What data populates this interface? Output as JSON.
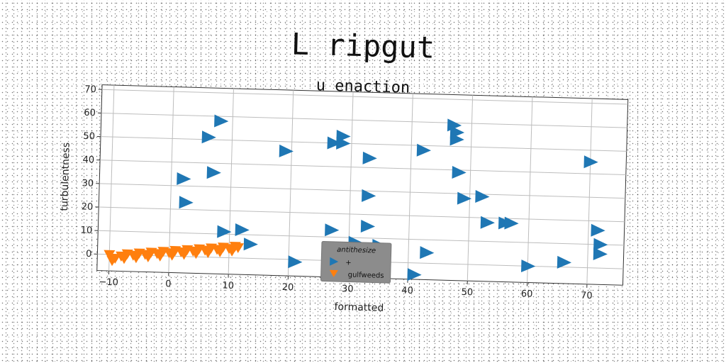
{
  "chart_data": {
    "type": "scatter",
    "title": "L ripgut",
    "subtitle": "u enaction",
    "xlabel": "formatted",
    "ylabel": "turbulentness",
    "xlim": [
      -12,
      76
    ],
    "ylim": [
      -7,
      72
    ],
    "xticks": [
      -10,
      0,
      10,
      20,
      30,
      40,
      50,
      60,
      70
    ],
    "yticks": [
      0,
      10,
      20,
      30,
      40,
      50,
      60,
      70
    ],
    "grid": true,
    "legend": {
      "title": "antithesize",
      "placement": "bottom-center"
    },
    "series": [
      {
        "name": "+",
        "color": "#1f77b4",
        "marker": "triangle-right",
        "points": [
          [
            8,
            58
          ],
          [
            6,
            51
          ],
          [
            7,
            36
          ],
          [
            2,
            33
          ],
          [
            2.5,
            23
          ],
          [
            9,
            11
          ],
          [
            12,
            12
          ],
          [
            13.5,
            6
          ],
          [
            19,
            46
          ],
          [
            21,
            -1
          ],
          [
            27,
            50
          ],
          [
            28.5,
            53
          ],
          [
            28.5,
            50
          ],
          [
            27,
            13
          ],
          [
            33,
            44
          ],
          [
            33,
            28
          ],
          [
            33,
            15
          ],
          [
            31,
            8
          ],
          [
            35,
            7
          ],
          [
            41,
            -5
          ],
          [
            42,
            48
          ],
          [
            43,
            4.5
          ],
          [
            47,
            59
          ],
          [
            47.5,
            56
          ],
          [
            47.5,
            53
          ],
          [
            48,
            39
          ],
          [
            49,
            28
          ],
          [
            52,
            29
          ],
          [
            53,
            18
          ],
          [
            56,
            18
          ],
          [
            57,
            18
          ],
          [
            60,
            0
          ],
          [
            66,
            2
          ],
          [
            70,
            45
          ],
          [
            71.5,
            16
          ],
          [
            72,
            10
          ],
          [
            72,
            6
          ]
        ]
      },
      {
        "name": "gulfweeds",
        "color": "#ff7f0e",
        "marker": "triangle-down",
        "points": [
          [
            -10,
            0
          ],
          [
            -9,
            -1.5
          ],
          [
            -8,
            -0.5
          ],
          [
            -7,
            0.5
          ],
          [
            -6,
            0
          ],
          [
            -5,
            1
          ],
          [
            -4,
            0.5
          ],
          [
            -3,
            1.5
          ],
          [
            -2,
            1
          ],
          [
            -1,
            2
          ],
          [
            0,
            1.5
          ],
          [
            1,
            2.5
          ],
          [
            2,
            2
          ],
          [
            3,
            3
          ],
          [
            4,
            2.5
          ],
          [
            5,
            3.5
          ],
          [
            6,
            3
          ],
          [
            7,
            4
          ],
          [
            8,
            3.5
          ],
          [
            9,
            4.5
          ],
          [
            10,
            4
          ],
          [
            11,
            5
          ],
          [
            11.5,
            4.5
          ],
          [
            -9.5,
            -2.5
          ],
          [
            -7.5,
            -1.5
          ],
          [
            -5.5,
            -1
          ],
          [
            -3.5,
            -0.5
          ],
          [
            -1.5,
            0
          ],
          [
            0.5,
            0.5
          ],
          [
            2.5,
            1
          ],
          [
            4.5,
            1.5
          ],
          [
            6.5,
            2
          ],
          [
            8.5,
            2.5
          ],
          [
            10.5,
            3
          ]
        ]
      }
    ]
  }
}
